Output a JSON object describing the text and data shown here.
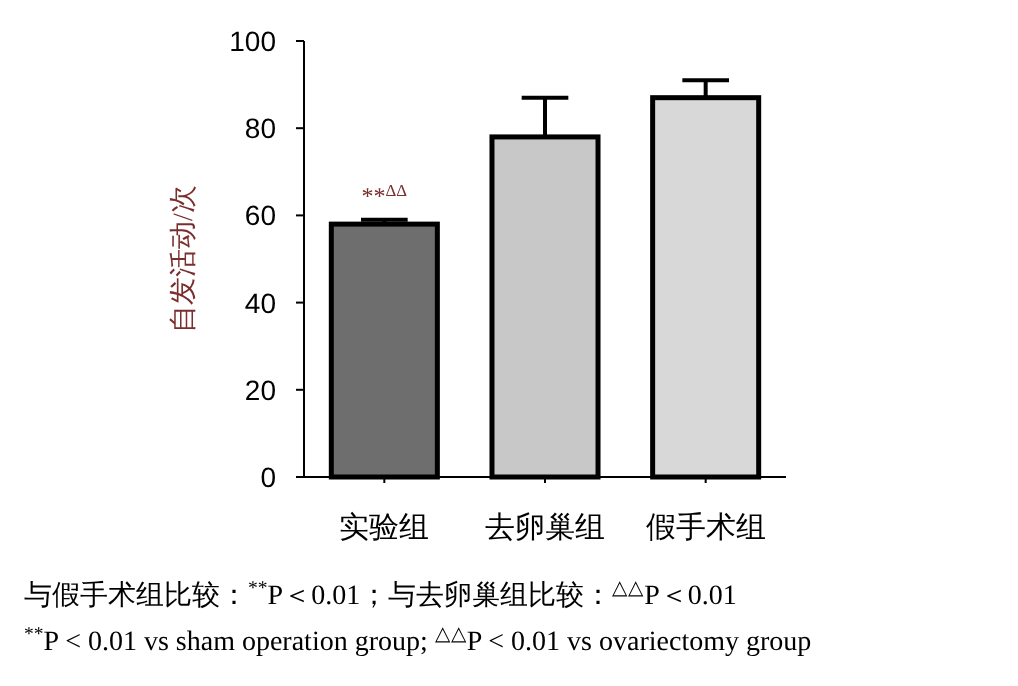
{
  "chart_data": {
    "type": "bar",
    "ylabel": "自发活动/次",
    "categories": [
      "实验组",
      "去卵巢组",
      "假手术组"
    ],
    "values": [
      58,
      78,
      87
    ],
    "errors": [
      [
        58,
        59
      ],
      [
        78,
        87
      ],
      [
        87,
        91
      ]
    ],
    "colors": [
      "#6e6e6e",
      "#c8c8c8",
      "#d8d8d8"
    ],
    "ylim": [
      0,
      100
    ],
    "yticks": [
      0,
      20,
      40,
      60,
      80,
      100
    ],
    "annotations": [
      "**$^{ΔΔ}$",
      "与假手术组比较：$^{**}$P＜0.01；与去卵巢组比较：$^{△△}$P＜0.01",
      "$^{**}$P < 0.01 vs sham operation group; $^{△△}$P < 0.01 vs ovariectomy group"
    ]
  }
}
